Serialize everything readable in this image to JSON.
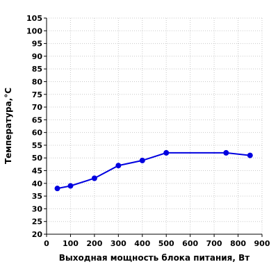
{
  "chart_data": {
    "type": "line",
    "title": "",
    "xlabel": "Выходная мощность блока питания, Вт",
    "ylabel": "Температура,°C",
    "xlim": [
      0,
      900
    ],
    "ylim": [
      20,
      105
    ],
    "x_ticks": [
      0,
      100,
      200,
      300,
      400,
      500,
      600,
      700,
      800,
      900
    ],
    "y_ticks": [
      20,
      25,
      30,
      35,
      40,
      45,
      50,
      55,
      60,
      65,
      70,
      75,
      80,
      85,
      90,
      95,
      100,
      105
    ],
    "grid": true,
    "legend": "none",
    "series": [
      {
        "color": "#0000e0",
        "x": [
          45,
          100,
          200,
          300,
          400,
          500,
          750,
          850
        ],
        "y": [
          38,
          39,
          42,
          47,
          49,
          52,
          52,
          51
        ]
      }
    ]
  }
}
